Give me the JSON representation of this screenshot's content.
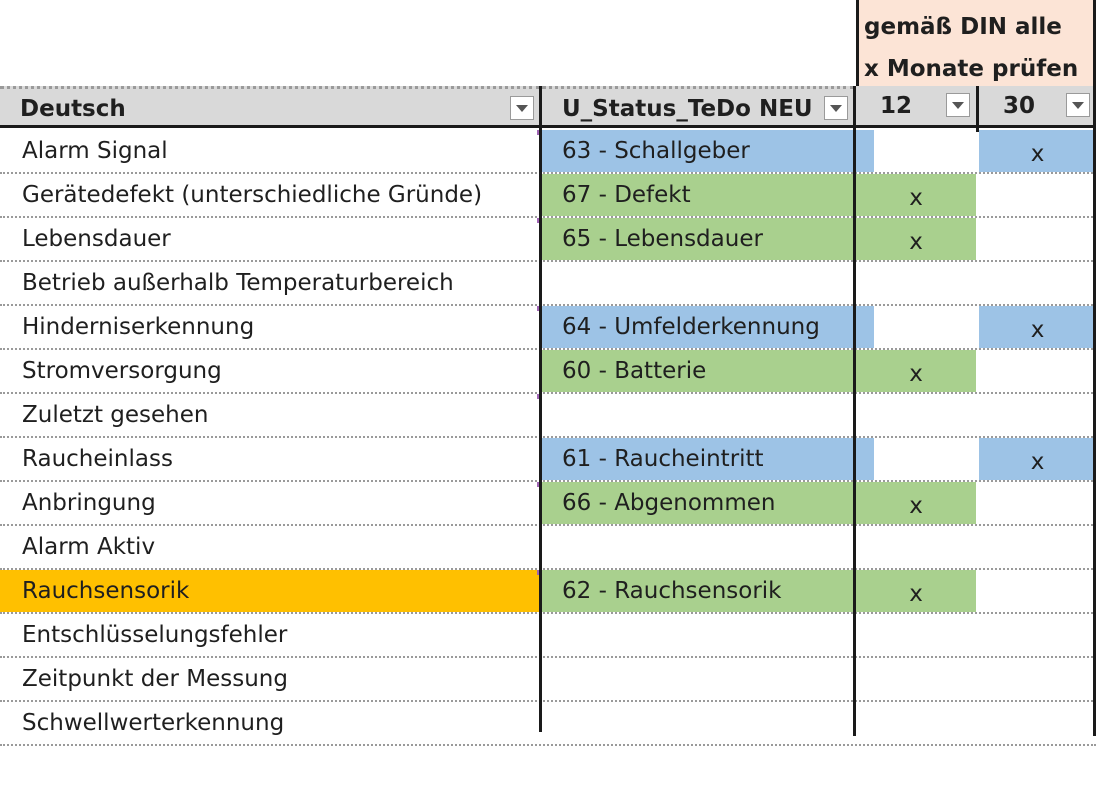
{
  "din_note": {
    "line1": "gemäß DIN alle",
    "line2": "x Monate prüfen"
  },
  "headers": {
    "deutsch": "Deutsch",
    "status": "U_Status_TeDo NEU",
    "m12": "12",
    "m30": "30"
  },
  "rows": [
    {
      "de": "Alarm Signal",
      "status": "63 - Schallgeber",
      "m12": "",
      "m30": "x",
      "color": "blue"
    },
    {
      "de": "Gerätedefekt (unterschiedliche Gründe)",
      "status": "67 - Defekt",
      "m12": "x",
      "m30": "",
      "color": "green"
    },
    {
      "de": "Lebensdauer",
      "status": "65 - Lebensdauer",
      "m12": "x",
      "m30": "",
      "color": "green"
    },
    {
      "de": "Betrieb außerhalb Temperaturbereich",
      "status": "",
      "m12": "",
      "m30": "",
      "color": ""
    },
    {
      "de": "Hinderniserkennung",
      "status": "64 - Umfelderkennung",
      "m12": "",
      "m30": "x",
      "color": "blue"
    },
    {
      "de": "Stromversorgung",
      "status": "60 - Batterie",
      "m12": "x",
      "m30": "",
      "color": "green"
    },
    {
      "de": "Zuletzt gesehen",
      "status": "",
      "m12": "",
      "m30": "",
      "color": ""
    },
    {
      "de": "Raucheinlass",
      "status": "61 - Raucheintritt",
      "m12": "",
      "m30": "x",
      "color": "blue"
    },
    {
      "de": "Anbringung",
      "status": "66 - Abgenommen",
      "m12": "x",
      "m30": "",
      "color": "green"
    },
    {
      "de": "Alarm Aktiv",
      "status": "",
      "m12": "",
      "m30": "",
      "color": ""
    },
    {
      "de": "Rauchsensorik",
      "status": "62 - Rauchsensorik",
      "m12": "x",
      "m30": "",
      "color": "green",
      "highlight": "orange"
    },
    {
      "de": "Entschlüsselungsfehler",
      "status": "",
      "m12": "",
      "m30": "",
      "color": ""
    },
    {
      "de": "Zeitpunkt der Messung",
      "status": "",
      "m12": "",
      "m30": "",
      "color": ""
    },
    {
      "de": "Schwellwerterkennung",
      "status": "",
      "m12": "",
      "m30": "",
      "color": ""
    }
  ],
  "colors": {
    "blue": "#9dc3e6",
    "green": "#a9d08e",
    "orange": "#ffc000",
    "header": "#d9d9d9",
    "note": "#fce4d6"
  }
}
